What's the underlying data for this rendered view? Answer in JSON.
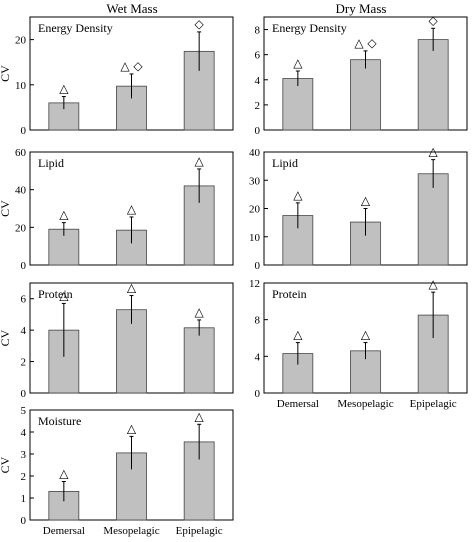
{
  "columns": [
    {
      "title": "Wet Mass"
    },
    {
      "title": "Dry Mass"
    }
  ],
  "markers": {
    "triangle": "△",
    "diamond": "◇"
  },
  "colors": {
    "bar_fill": "#c0c0c0",
    "bar_stroke": "#444444",
    "axis": "#000000"
  },
  "chart_data": [
    {
      "type": "bar",
      "column": "Wet Mass",
      "title": "Energy Density",
      "ylabel": "CV",
      "categories": [
        "Demersal",
        "Mesopelagic",
        "Epipelagic"
      ],
      "values": [
        6.0,
        9.7,
        17.4
      ],
      "errors": [
        1.4,
        2.7,
        4.3
      ],
      "ylim": [
        0,
        25
      ],
      "yticks": [
        0,
        10,
        20
      ],
      "show_xticklabels": false,
      "annotations": [
        [
          "triangle"
        ],
        [
          "triangle",
          "diamond"
        ],
        [
          "diamond"
        ]
      ]
    },
    {
      "type": "bar",
      "column": "Dry Mass",
      "title": "Energy Density",
      "ylabel": "",
      "categories": [
        "Demersal",
        "Mesopelagic",
        "Epipelagic"
      ],
      "values": [
        4.1,
        5.6,
        7.2
      ],
      "errors": [
        0.6,
        0.7,
        0.9
      ],
      "ylim": [
        0,
        9
      ],
      "yticks": [
        0,
        2,
        4,
        6,
        8
      ],
      "show_xticklabels": false,
      "annotations": [
        [
          "triangle"
        ],
        [
          "triangle",
          "diamond"
        ],
        [
          "diamond"
        ]
      ]
    },
    {
      "type": "bar",
      "column": "Wet Mass",
      "title": "Lipid",
      "ylabel": "CV",
      "categories": [
        "Demersal",
        "Mesopelagic",
        "Epipelagic"
      ],
      "values": [
        19,
        18.5,
        42
      ],
      "errors": [
        3.5,
        7,
        9
      ],
      "ylim": [
        0,
        60
      ],
      "yticks": [
        0,
        20,
        40,
        60
      ],
      "show_xticklabels": false,
      "annotations": [
        [
          "triangle"
        ],
        [
          "triangle"
        ],
        [
          "triangle"
        ]
      ]
    },
    {
      "type": "bar",
      "column": "Dry Mass",
      "title": "Lipid",
      "ylabel": "",
      "categories": [
        "Demersal",
        "Mesopelagic",
        "Epipelagic"
      ],
      "values": [
        17.5,
        15.2,
        32.3
      ],
      "errors": [
        4.5,
        4.8,
        5.0
      ],
      "ylim": [
        0,
        40
      ],
      "yticks": [
        0,
        10,
        20,
        30,
        40
      ],
      "show_xticklabels": false,
      "annotations": [
        [
          "triangle"
        ],
        [
          "triangle"
        ],
        [
          "triangle"
        ]
      ]
    },
    {
      "type": "bar",
      "column": "Wet Mass",
      "title": "Protein",
      "ylabel": "CV",
      "categories": [
        "Demersal",
        "Mesopelagic",
        "Epipelagic"
      ],
      "values": [
        4.0,
        5.3,
        4.15
      ],
      "errors": [
        1.7,
        0.9,
        0.5
      ],
      "ylim": [
        0,
        7
      ],
      "yticks": [
        0,
        2,
        4,
        6
      ],
      "show_xticklabels": false,
      "annotations": [
        [
          "triangle"
        ],
        [
          "triangle"
        ],
        [
          "triangle"
        ]
      ]
    },
    {
      "type": "bar",
      "column": "Dry Mass",
      "title": "Protein",
      "ylabel": "",
      "categories": [
        "Demersal",
        "Mesopelagic",
        "Epipelagic"
      ],
      "values": [
        4.3,
        4.6,
        8.5
      ],
      "errors": [
        1.2,
        0.9,
        2.5
      ],
      "ylim": [
        0,
        12
      ],
      "yticks": [
        0,
        4,
        8,
        12
      ],
      "show_xticklabels": true,
      "annotations": [
        [
          "triangle"
        ],
        [
          "triangle"
        ],
        [
          "triangle"
        ]
      ]
    },
    {
      "type": "bar",
      "column": "Wet Mass",
      "title": "Moisture",
      "ylabel": "CV",
      "categories": [
        "Demersal",
        "Mesopelagic",
        "Epipelagic"
      ],
      "values": [
        1.3,
        3.05,
        3.55
      ],
      "errors": [
        0.45,
        0.75,
        0.8
      ],
      "ylim": [
        0,
        5
      ],
      "yticks": [
        0,
        1,
        2,
        3,
        4,
        5
      ],
      "show_xticklabels": true,
      "annotations": [
        [
          "triangle"
        ],
        [
          "triangle"
        ],
        [
          "triangle"
        ]
      ]
    }
  ]
}
